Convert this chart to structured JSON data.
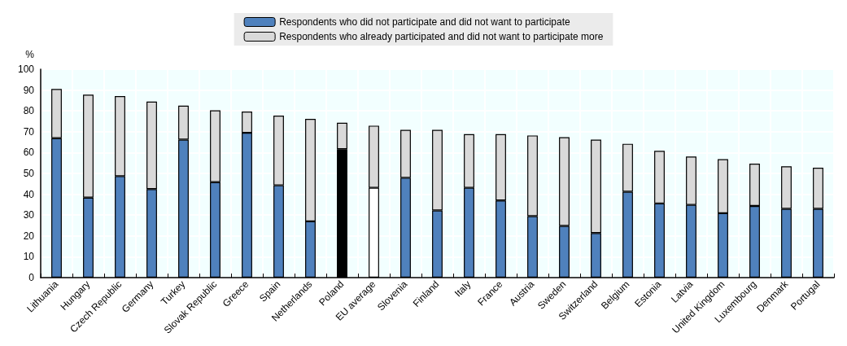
{
  "chart_data": {
    "type": "bar",
    "ylabel": "%",
    "categories": [
      "Lithuania",
      "Hungary",
      "Czech Republic",
      "Germany",
      "Turkey",
      "Slovak Republic",
      "Greece",
      "Spain",
      "Netherlands",
      "Poland",
      "EU average",
      "Slovenia",
      "Finland",
      "Italy",
      "France",
      "Austria",
      "Sweden",
      "Switzerland",
      "Belgium",
      "Estonia",
      "Latvia",
      "United Kingdom",
      "Luxembourg",
      "Denmark",
      "Portugal"
    ],
    "series": [
      {
        "name": "Respondents who did not participate and did not want to participate",
        "color": "#4f81bd",
        "colors": [
          "#4f81bd",
          "#4f81bd",
          "#4f81bd",
          "#4f81bd",
          "#4f81bd",
          "#4f81bd",
          "#4f81bd",
          "#4f81bd",
          "#4f81bd",
          "#000000",
          "#ffffff",
          "#4f81bd",
          "#4f81bd",
          "#4f81bd",
          "#4f81bd",
          "#4f81bd",
          "#4f81bd",
          "#4f81bd",
          "#4f81bd",
          "#4f81bd",
          "#4f81bd",
          "#4f81bd",
          "#4f81bd",
          "#4f81bd",
          "#4f81bd"
        ],
        "values": [
          66.9,
          38.4,
          48.7,
          42.5,
          66.2,
          45.8,
          69.5,
          44.3,
          27.0,
          61.6,
          43.1,
          47.9,
          32.2,
          43.1,
          37.0,
          29.5,
          24.8,
          21.4,
          41.2,
          35.6,
          34.9,
          30.9,
          34.4,
          33.0,
          33.0
        ]
      },
      {
        "name": "Respondents who already participated and did not want to participate more",
        "color": "#d9d9d9",
        "values": [
          23.6,
          49.4,
          38.4,
          42.0,
          16.3,
          34.5,
          10.2,
          33.4,
          49.2,
          12.7,
          29.8,
          23.0,
          38.7,
          25.7,
          31.8,
          38.7,
          42.6,
          44.8,
          23.0,
          25.2,
          23.2,
          25.9,
          20.3,
          20.4,
          19.7
        ]
      }
    ],
    "stacked": true,
    "ylim": [
      0,
      100
    ],
    "yticks": [
      0,
      10,
      20,
      30,
      40,
      50,
      60,
      70,
      80,
      90,
      100
    ],
    "grid": true,
    "legend": "top"
  }
}
